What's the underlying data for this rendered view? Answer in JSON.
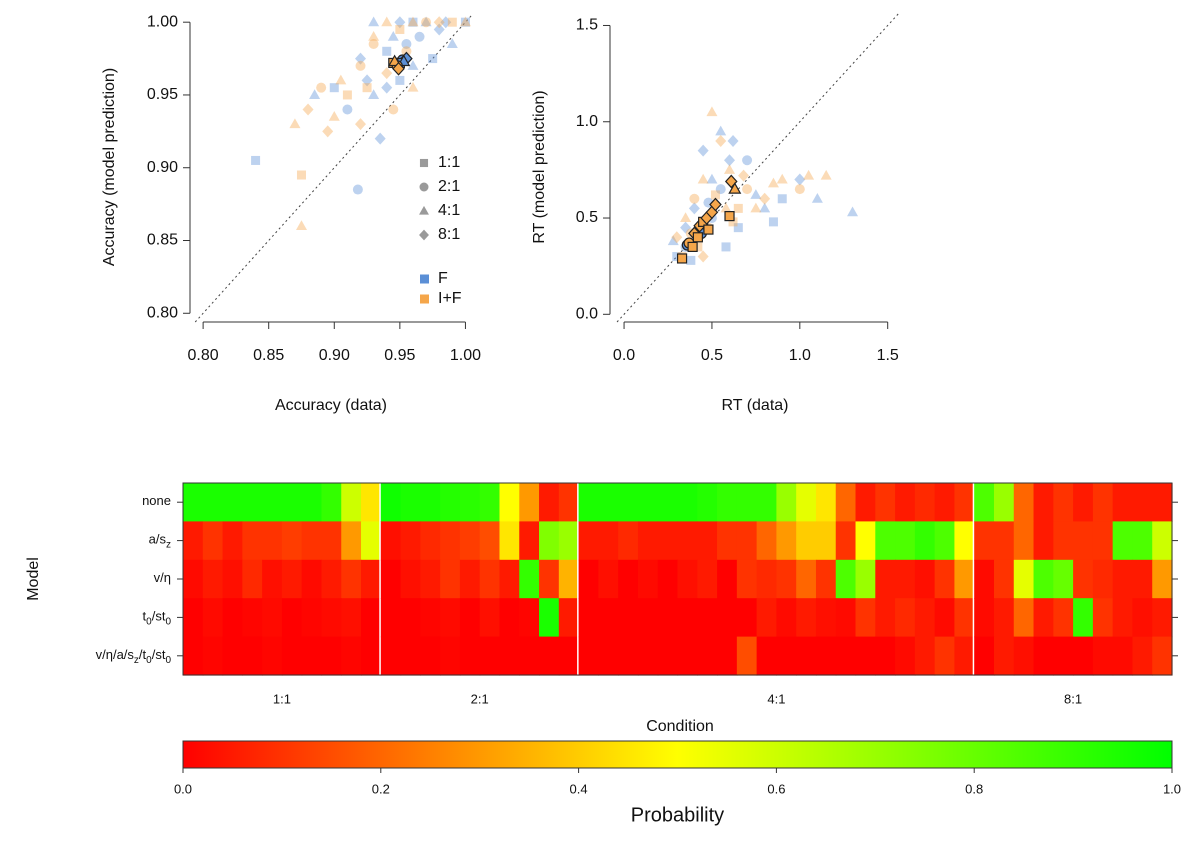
{
  "chart_data": [
    {
      "type": "scatter",
      "xlabel": "Accuracy (data)",
      "ylabel": "Accuracy (model prediction)",
      "xlim": [
        0.79,
        1.005
      ],
      "ylim": [
        0.794,
        1.007
      ],
      "xticks": [
        {
          "value": 0.8,
          "label": "0.80"
        },
        {
          "value": 0.85,
          "label": "0.85"
        },
        {
          "value": 0.9,
          "label": "0.90"
        },
        {
          "value": 0.95,
          "label": "0.95"
        },
        {
          "value": 1.0,
          "label": "1.00"
        }
      ],
      "yticks": [
        {
          "value": 0.8,
          "label": "0.80"
        },
        {
          "value": 0.85,
          "label": "0.85"
        },
        {
          "value": 0.9,
          "label": "0.90"
        },
        {
          "value": 0.95,
          "label": "0.95"
        },
        {
          "value": 1.0,
          "label": "1.00"
        }
      ],
      "diagonal": true,
      "shape_legend": {
        "labels": [
          "1:1",
          "2:1",
          "4:1",
          "8:1"
        ],
        "shapes": [
          "square",
          "circle",
          "triangle",
          "diamond"
        ],
        "color": "#9a9a9a"
      },
      "series": [
        {
          "name": "F",
          "color": "#5b8fd6",
          "x": [
            0.84,
            0.918,
            0.93,
            0.95,
            0.96,
            0.97,
            0.98,
            0.94,
            0.955,
            0.96,
            0.925,
            0.9,
            0.91,
            0.93,
            0.94,
            0.95,
            0.965,
            0.985,
            0.99,
            0.92,
            0.885,
            0.935,
            0.975,
            0.945,
            1.0
          ],
          "y": [
            0.905,
            0.885,
            1.0,
            1.0,
            1.0,
            1.0,
            0.995,
            0.98,
            0.985,
            0.97,
            0.96,
            0.955,
            0.94,
            0.95,
            0.955,
            0.96,
            0.99,
            1.0,
            0.985,
            0.975,
            0.95,
            0.92,
            0.975,
            0.99,
            1.0
          ],
          "shapes": [
            "square",
            "circle",
            "triangle",
            "diamond",
            "square",
            "triangle",
            "diamond",
            "square",
            "circle",
            "triangle",
            "diamond",
            "square",
            "circle",
            "triangle",
            "diamond",
            "square",
            "circle",
            "diamond",
            "triangle",
            "diamond",
            "triangle",
            "diamond",
            "square",
            "triangle",
            "square"
          ],
          "mean_x": [
            0.952,
            0.955,
            0.95,
            0.953
          ],
          "mean_y": [
            0.974,
            0.975,
            0.972,
            0.973
          ],
          "mean_shapes": [
            "circle",
            "diamond",
            "square",
            "triangle"
          ]
        },
        {
          "name": "I+F",
          "color": "#f5a64a",
          "x": [
            0.87,
            0.875,
            0.875,
            0.88,
            0.89,
            0.9,
            0.91,
            0.92,
            0.93,
            0.93,
            0.94,
            0.95,
            0.96,
            0.97,
            0.98,
            0.99,
            1.0,
            0.92,
            0.905,
            0.945,
            0.96,
            0.925,
            0.94,
            0.895,
            0.955
          ],
          "y": [
            0.93,
            0.86,
            0.895,
            0.94,
            0.955,
            0.935,
            0.95,
            0.97,
            0.99,
            0.985,
            0.965,
            0.995,
            1.0,
            1.0,
            1.0,
            1.0,
            1.0,
            0.93,
            0.96,
            0.94,
            0.955,
            0.955,
            1.0,
            0.925,
            0.98
          ],
          "shapes": [
            "triangle",
            "triangle",
            "square",
            "diamond",
            "circle",
            "triangle",
            "square",
            "circle",
            "triangle",
            "circle",
            "diamond",
            "square",
            "triangle",
            "circle",
            "diamond",
            "square",
            "triangle",
            "diamond",
            "triangle",
            "circle",
            "triangle",
            "square",
            "triangle",
            "diamond",
            "circle"
          ],
          "mean_x": [
            0.945,
            0.948,
            0.946,
            0.949
          ],
          "mean_y": [
            0.972,
            0.97,
            0.973,
            0.968
          ],
          "mean_shapes": [
            "square",
            "circle",
            "triangle",
            "diamond"
          ]
        }
      ]
    },
    {
      "type": "scatter",
      "xlabel": "RT (data)",
      "ylabel": "RT (model prediction)",
      "xlim": [
        -0.08,
        1.57
      ],
      "ylim": [
        -0.04,
        1.57
      ],
      "xticks": [
        {
          "value": 0,
          "label": "0.0"
        },
        0.5,
        {
          "value": 1,
          "label": "1.0"
        },
        1.5
      ],
      "yticks": [
        {
          "value": 0,
          "label": "0.0"
        },
        0.5,
        {
          "value": 1,
          "label": "1.0"
        },
        1.5
      ],
      "diagonal": true,
      "series": [
        {
          "name": "F",
          "color": "#5b8fd6",
          "x": [
            0.3,
            0.35,
            0.4,
            0.45,
            0.5,
            0.55,
            0.6,
            0.7,
            0.8,
            0.9,
            1.0,
            1.1,
            1.3,
            0.65,
            0.75,
            0.35,
            0.42,
            0.5,
            0.58,
            0.62,
            0.28,
            0.38,
            0.48,
            0.55,
            0.85
          ],
          "y": [
            0.3,
            0.35,
            0.55,
            0.85,
            0.7,
            0.65,
            0.8,
            0.8,
            0.55,
            0.6,
            0.7,
            0.6,
            0.53,
            0.45,
            0.62,
            0.45,
            0.4,
            0.5,
            0.35,
            0.9,
            0.38,
            0.28,
            0.58,
            0.95,
            0.48
          ],
          "shapes": [
            "square",
            "circle",
            "diamond",
            "diamond",
            "triangle",
            "circle",
            "diamond",
            "circle",
            "triangle",
            "square",
            "diamond",
            "triangle",
            "triangle",
            "square",
            "triangle",
            "diamond",
            "square",
            "circle",
            "square",
            "diamond",
            "triangle",
            "square",
            "circle",
            "triangle",
            "square"
          ],
          "mean_x": [
            0.36,
            0.44
          ],
          "mean_y": [
            0.36,
            0.42
          ],
          "mean_shapes": [
            "circle",
            "circle"
          ]
        },
        {
          "name": "I+F",
          "color": "#f5a64a",
          "x": [
            0.3,
            0.35,
            0.4,
            0.45,
            0.5,
            0.55,
            0.6,
            0.65,
            0.7,
            0.8,
            0.9,
            1.05,
            1.15,
            0.42,
            0.48,
            0.58,
            0.33,
            0.38,
            0.68,
            0.75,
            0.52,
            0.45,
            1.0,
            0.62,
            0.85
          ],
          "y": [
            0.4,
            0.5,
            0.6,
            0.7,
            1.05,
            0.9,
            0.75,
            0.55,
            0.65,
            0.6,
            0.7,
            0.72,
            0.72,
            0.35,
            0.45,
            0.55,
            0.3,
            0.42,
            0.72,
            0.55,
            0.62,
            0.3,
            0.65,
            0.48,
            0.68
          ],
          "shapes": [
            "diamond",
            "triangle",
            "circle",
            "triangle",
            "triangle",
            "diamond",
            "triangle",
            "square",
            "circle",
            "diamond",
            "triangle",
            "triangle",
            "triangle",
            "square",
            "circle",
            "triangle",
            "square",
            "circle",
            "diamond",
            "triangle",
            "square",
            "diamond",
            "circle",
            "square",
            "triangle"
          ],
          "mean_x": [
            0.33,
            0.37,
            0.39,
            0.4,
            0.42,
            0.43,
            0.45,
            0.47,
            0.48,
            0.5,
            0.52,
            0.6,
            0.61,
            0.63
          ],
          "mean_y": [
            0.29,
            0.37,
            0.35,
            0.42,
            0.4,
            0.46,
            0.48,
            0.5,
            0.44,
            0.53,
            0.57,
            0.51,
            0.69,
            0.65
          ],
          "mean_shapes": [
            "square",
            "circle",
            "square",
            "diamond",
            "square",
            "diamond",
            "square",
            "diamond",
            "square",
            "diamond",
            "diamond",
            "square",
            "diamond",
            "triangle"
          ]
        }
      ]
    },
    {
      "type": "heatmap",
      "xlabel": "Condition",
      "ylabel": "Model",
      "rows": [
        [
          "none"
        ],
        [
          "a/s",
          "z"
        ],
        [
          "v/η"
        ],
        [
          "t",
          "0",
          "/st",
          "0"
        ],
        [
          "v/η/a/s",
          "z",
          "/t",
          "0",
          "/st",
          "0"
        ]
      ],
      "colormap": [
        "#ff0000",
        "#ffff00",
        "#00ff00"
      ],
      "groups": [
        {
          "name": "1:1",
          "z": [
            [
              0.95,
              0.95,
              0.95,
              0.95,
              0.95,
              0.95,
              0.95,
              0.9,
              0.6,
              0.45
            ],
            [
              0.05,
              0.1,
              0.05,
              0.1,
              0.1,
              0.12,
              0.1,
              0.1,
              0.3,
              0.55
            ],
            [
              0.02,
              0.05,
              0.03,
              0.08,
              0.03,
              0.05,
              0.02,
              0.05,
              0.1,
              0.05
            ],
            [
              0,
              0.02,
              0,
              0.01,
              0.02,
              0,
              0.01,
              0.02,
              0.03,
              0
            ],
            [
              0,
              0.01,
              0,
              0,
              0.01,
              0,
              0,
              0,
              0.01,
              0
            ]
          ]
        },
        {
          "name": "2:1",
          "z": [
            [
              0.97,
              0.95,
              0.95,
              0.93,
              0.92,
              0.9,
              0.5,
              0.3,
              0.05,
              0.1
            ],
            [
              0.03,
              0.05,
              0.08,
              0.1,
              0.12,
              0.15,
              0.45,
              0.05,
              0.75,
              0.7
            ],
            [
              0,
              0.03,
              0.05,
              0.1,
              0.05,
              0.1,
              0.05,
              0.9,
              0.1,
              0.35
            ],
            [
              0,
              0,
              0.01,
              0.02,
              0,
              0.03,
              0,
              0.01,
              0.95,
              0.05
            ],
            [
              0,
              0,
              0,
              0.01,
              0,
              0,
              0,
              0,
              0,
              0
            ]
          ]
        },
        {
          "name": "4:1",
          "z": [
            [
              0.95,
              0.95,
              0.95,
              0.95,
              0.95,
              0.95,
              0.93,
              0.9,
              0.9,
              0.9,
              0.7,
              0.55,
              0.45,
              0.2,
              0.05,
              0.1,
              0.05,
              0.08,
              0.05,
              0.1
            ],
            [
              0.05,
              0.05,
              0.08,
              0.05,
              0.05,
              0.05,
              0.05,
              0.1,
              0.1,
              0.2,
              0.3,
              0.4,
              0.4,
              0.1,
              0.5,
              0.85,
              0.85,
              0.9,
              0.85,
              0.5
            ],
            [
              0,
              0.03,
              0,
              0.02,
              0,
              0.03,
              0.05,
              0,
              0.1,
              0.08,
              0.1,
              0.2,
              0.1,
              0.85,
              0.7,
              0.05,
              0.05,
              0.03,
              0.1,
              0.3
            ],
            [
              0,
              0,
              0,
              0,
              0,
              0,
              0,
              0,
              0,
              0.05,
              0.02,
              0.05,
              0.03,
              0.02,
              0.1,
              0.05,
              0.08,
              0.05,
              0.02,
              0.1
            ],
            [
              0,
              0,
              0,
              0,
              0,
              0,
              0,
              0,
              0.15,
              0,
              0,
              0,
              0,
              0,
              0,
              0,
              0.02,
              0.05,
              0.1,
              0.05
            ]
          ]
        },
        {
          "name": "8:1",
          "z": [
            [
              0.85,
              0.7,
              0.2,
              0.05,
              0.1,
              0.05,
              0.1,
              0.05,
              0.05,
              0.05
            ],
            [
              0.1,
              0.1,
              0.2,
              0.05,
              0.1,
              0.1,
              0.1,
              0.85,
              0.85,
              0.6
            ],
            [
              0.02,
              0.1,
              0.55,
              0.85,
              0.8,
              0.1,
              0.08,
              0.05,
              0.05,
              0.3
            ],
            [
              0.02,
              0.05,
              0.2,
              0.05,
              0.1,
              0.9,
              0.1,
              0.05,
              0.03,
              0.05
            ],
            [
              0,
              0.05,
              0.03,
              0,
              0,
              0,
              0.02,
              0.02,
              0.05,
              0.1
            ]
          ]
        }
      ],
      "colorbar": {
        "label": "Probability",
        "lim": [
          0,
          1
        ],
        "ticks": [
          {
            "value": 0,
            "label": "0.0"
          },
          0.2,
          0.4,
          0.6,
          0.8,
          {
            "value": 1,
            "label": "1.0"
          }
        ]
      }
    }
  ]
}
